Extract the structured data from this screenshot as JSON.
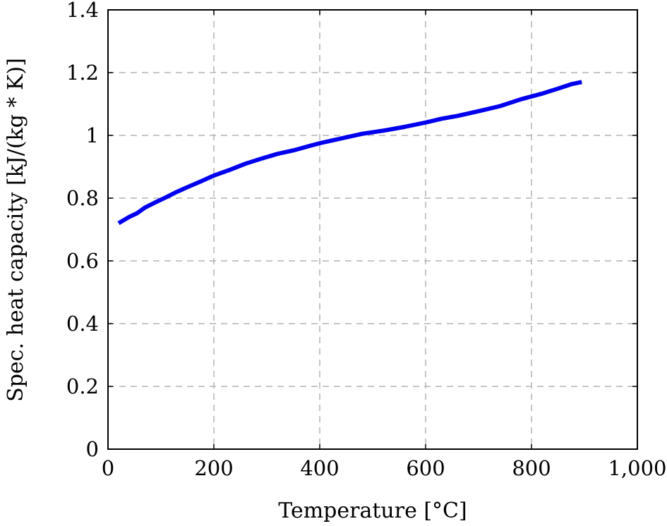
{
  "chart_data": {
    "type": "line",
    "title": "",
    "xlabel": "Temperature [°C]",
    "ylabel": "Spec. heat capacity [kJ/(kg * K)]",
    "xlim": [
      0,
      1000
    ],
    "ylim": [
      0,
      1.4
    ],
    "x_ticks": [
      0,
      200,
      400,
      600,
      800,
      1000
    ],
    "x_tick_labels": [
      "0",
      "200",
      "400",
      "600",
      "800",
      "1,000"
    ],
    "y_ticks": [
      0,
      0.2,
      0.4,
      0.6,
      0.8,
      1,
      1.2,
      1.4
    ],
    "y_tick_labels": [
      "0",
      "0.2",
      "0.4",
      "0.6",
      "0.8",
      "1",
      "1.2",
      "1.4"
    ],
    "grid": true,
    "series": [
      {
        "color": "#0000ee",
        "x": [
          20,
          40,
          55,
          70,
          90,
          110,
          130,
          150,
          175,
          200,
          230,
          260,
          290,
          320,
          350,
          380,
          400,
          440,
          480,
          520,
          560,
          600,
          630,
          660,
          700,
          740,
          780,
          820,
          850,
          875,
          895
        ],
        "y": [
          0.72,
          0.74,
          0.752,
          0.77,
          0.787,
          0.803,
          0.82,
          0.835,
          0.853,
          0.872,
          0.89,
          0.91,
          0.926,
          0.941,
          0.952,
          0.966,
          0.975,
          0.99,
          1.005,
          1.015,
          1.027,
          1.041,
          1.053,
          1.062,
          1.077,
          1.093,
          1.115,
          1.133,
          1.149,
          1.163,
          1.17
        ]
      }
    ]
  }
}
